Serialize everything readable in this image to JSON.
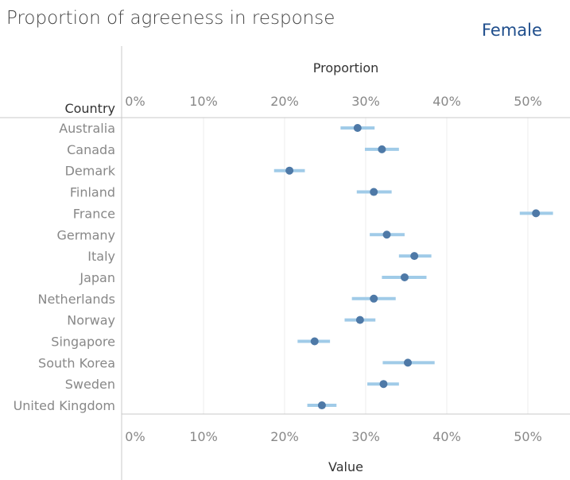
{
  "title": "Proportion of agreeness in response",
  "subtitle": "Female",
  "chart_data": {
    "type": "scatter",
    "title": "Proportion of agreeness in response",
    "subtitle": "Female",
    "top_axis_label": "Proportion",
    "xlabel": "Value",
    "ylabel": "Country",
    "xlim": [
      0,
      0.55
    ],
    "xticks": [
      0,
      0.1,
      0.2,
      0.3,
      0.4,
      0.5
    ],
    "xtick_labels": [
      "0%",
      "10%",
      "20%",
      "30%",
      "40%",
      "50%"
    ],
    "grid": true,
    "categories": [
      "Australia",
      "Canada",
      "Demark",
      "Finland",
      "France",
      "Germany",
      "Italy",
      "Japan",
      "Netherlands",
      "Norway",
      "Singapore",
      "South Korea",
      "Sweden",
      "United Kingdom"
    ],
    "values": [
      0.29,
      0.32,
      0.206,
      0.31,
      0.51,
      0.326,
      0.36,
      0.348,
      0.31,
      0.293,
      0.237,
      0.352,
      0.322,
      0.246
    ],
    "ci_low": [
      0.269,
      0.299,
      0.187,
      0.289,
      0.49,
      0.305,
      0.341,
      0.32,
      0.283,
      0.274,
      0.216,
      0.321,
      0.302,
      0.228
    ],
    "ci_high": [
      0.311,
      0.341,
      0.225,
      0.332,
      0.531,
      0.348,
      0.381,
      0.375,
      0.337,
      0.312,
      0.256,
      0.385,
      0.341,
      0.264
    ],
    "colors": {
      "point": "#4e79a7",
      "interval": "#a0cbe8"
    }
  }
}
